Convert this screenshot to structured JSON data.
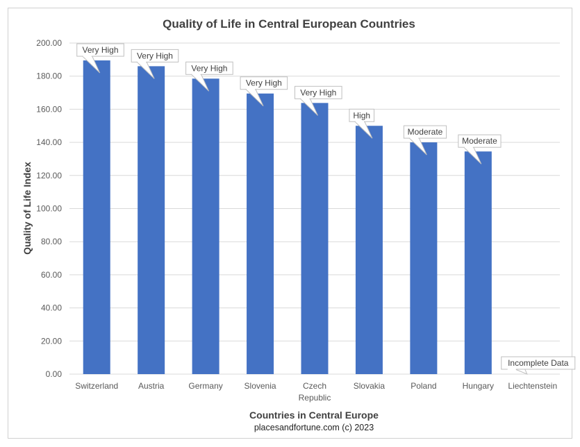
{
  "chart_data": {
    "type": "bar",
    "title": "Quality of Life in Central European Countries",
    "xlabel": "Countries in Central Europe",
    "ylabel": "Quality of Life Index",
    "source": "placesandfortune.com (c) 2023",
    "ylim": [
      0,
      200
    ],
    "y_ticks": [
      "0.00",
      "20.00",
      "40.00",
      "60.00",
      "80.00",
      "100.00",
      "120.00",
      "140.00",
      "160.00",
      "180.00",
      "200.00"
    ],
    "y_tick_values": [
      0,
      20,
      40,
      60,
      80,
      100,
      120,
      140,
      160,
      180,
      200
    ],
    "grid": true,
    "categories": [
      [
        "Switzerland"
      ],
      [
        "Austria"
      ],
      [
        "Germany"
      ],
      [
        "Slovenia"
      ],
      [
        "Czech",
        "Republic"
      ],
      [
        "Slovakia"
      ],
      [
        "Poland"
      ],
      [
        "Hungary"
      ],
      [
        "Liechtenstein"
      ]
    ],
    "values": [
      189.5,
      186.0,
      178.5,
      169.5,
      163.8,
      150.0,
      140.0,
      134.5,
      0
    ],
    "data_labels": [
      "Very High",
      "Very High",
      "Very High",
      "Very High",
      "Very High",
      "High",
      "Moderate",
      "Moderate",
      "Incomplete Data"
    ],
    "bar_color": "#4472C4",
    "grid_color": "#d9d9d9"
  }
}
